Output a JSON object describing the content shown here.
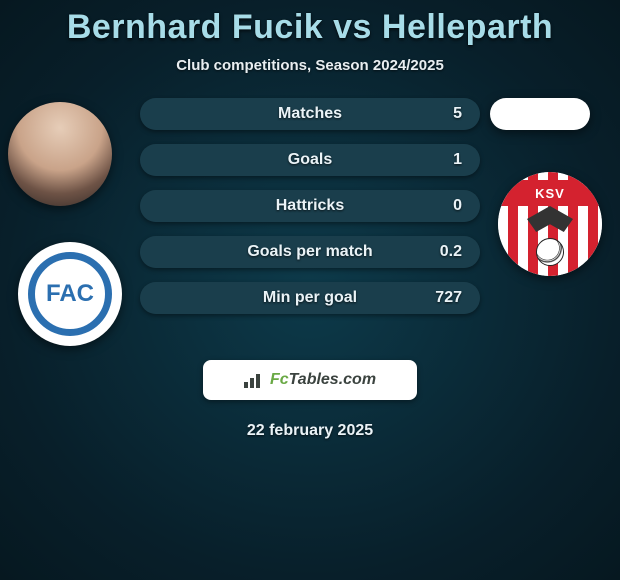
{
  "title": "Bernhard Fucik vs Helleparth",
  "subtitle": "Club competitions, Season 2024/2025",
  "date": "22 february 2025",
  "colors": {
    "title_color": "#a7dce8",
    "text_color": "#eaf3f7",
    "bg_inner": "#0d3a4a",
    "bg_outer": "#061820",
    "bar_fill": "#1a3e4c",
    "logo_left_accent": "#2b6fb0",
    "logo_right_accent": "#d4222f",
    "brand_dark": "#3b433f",
    "brand_green": "#6aa945"
  },
  "typography": {
    "title_fontsize": 34,
    "subtitle_fontsize": 15,
    "bar_label_fontsize": 16,
    "date_fontsize": 16
  },
  "stats": [
    {
      "label": "Matches",
      "value_right": "5"
    },
    {
      "label": "Goals",
      "value_right": "1"
    },
    {
      "label": "Hattricks",
      "value_right": "0"
    },
    {
      "label": "Goals per match",
      "value_right": "0.2"
    },
    {
      "label": "Min per goal",
      "value_right": "727"
    }
  ],
  "left_club": {
    "acronym": "FAC"
  },
  "right_club": {
    "acronym": "KSV"
  },
  "brand": {
    "prefix": "Fc",
    "suffix": "Tables.com"
  }
}
